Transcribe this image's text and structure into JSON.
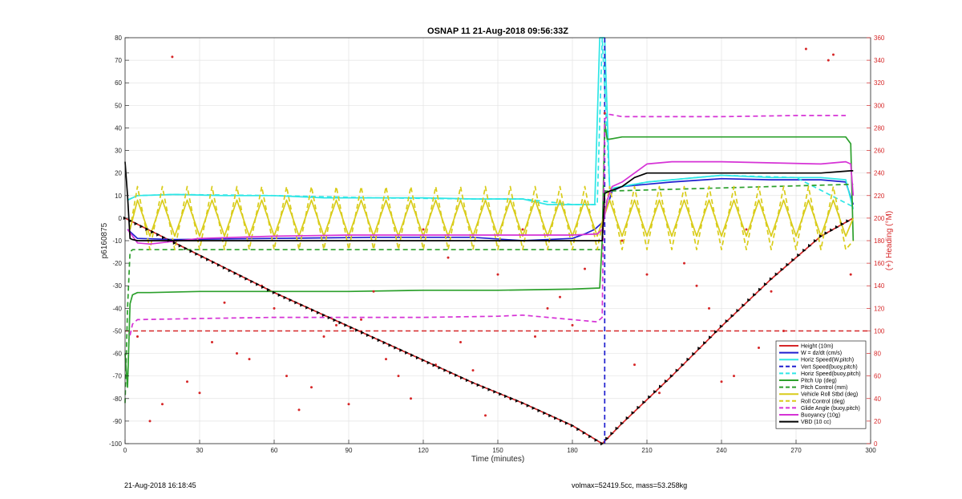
{
  "footer": {
    "timestamp": "21-Aug-2018 16:18:45",
    "mass_info": "volmax=52419.5cc, mass=53.258kg"
  },
  "chart_data": {
    "type": "line",
    "title": "OSNAP 11 21-Aug-2018 09:56:33Z",
    "xlabel": "Time (minutes)",
    "ylabel": "p6160875",
    "ylabel_right": "(+) Heading (°M)",
    "xlim": [
      0,
      300
    ],
    "ylim": [
      -100,
      80
    ],
    "ylim_right": [
      0,
      360
    ],
    "xticks": [
      0,
      30,
      60,
      90,
      120,
      150,
      180,
      210,
      240,
      270,
      300
    ],
    "yticks": [
      -100,
      -90,
      -80,
      -70,
      -60,
      -50,
      -40,
      -30,
      -20,
      -10,
      0,
      10,
      20,
      30,
      40,
      50,
      60,
      70,
      80
    ],
    "yticks_right": [
      0,
      20,
      40,
      60,
      80,
      100,
      120,
      140,
      160,
      180,
      200,
      220,
      240,
      260,
      280,
      300,
      320,
      340,
      360
    ],
    "grid": true,
    "legend_position": "bottom-right",
    "colors": {
      "red": "#d62728",
      "blue": "#1f1fcf",
      "cyan": "#2ee6e6",
      "green": "#2ca02c",
      "yellow": "#d9cc1a",
      "magenta": "#d633d6",
      "black": "#000000"
    },
    "series": [
      {
        "name": "Height (10m)",
        "color": "#d62728",
        "style": "solid",
        "x": [
          0,
          20,
          40,
          60,
          80,
          100,
          120,
          140,
          160,
          180,
          192,
          200,
          220,
          240,
          260,
          280,
          293
        ],
        "y": [
          0,
          -11,
          -22,
          -33,
          -43,
          -53,
          -63,
          -73,
          -82,
          -92,
          -100,
          -91,
          -70,
          -48,
          -27,
          -8,
          0
        ]
      },
      {
        "name": "W = dz/dt (cm/s)",
        "color": "#1f1fcf",
        "style": "solid",
        "x": [
          1,
          5,
          20,
          60,
          100,
          140,
          160,
          180,
          185,
          189,
          192,
          196,
          200,
          210,
          220,
          240,
          260,
          280,
          290,
          293
        ],
        "y": [
          -5,
          -9,
          -9.5,
          -9,
          -8.5,
          -8.5,
          -10,
          -9,
          -7,
          -5,
          -2,
          12,
          14,
          15,
          16,
          17.5,
          17,
          17,
          16,
          6
        ]
      },
      {
        "name": "Horiz Speed(W,pitch)",
        "color": "#2ee6e6",
        "style": "solid",
        "x": [
          1,
          5,
          20,
          40,
          60,
          80,
          100,
          120,
          140,
          160,
          170,
          180,
          189,
          191,
          192,
          193,
          195,
          200,
          210,
          220,
          240,
          260,
          280,
          290,
          293
        ],
        "y": [
          8,
          10,
          10.5,
          10,
          10,
          9,
          9,
          9,
          8.5,
          8.5,
          6,
          6,
          6,
          80,
          80,
          80,
          13,
          14,
          16,
          17,
          19,
          18,
          18,
          17,
          4
        ]
      },
      {
        "name": "Vert Speed(buoy,pitch)",
        "color": "#1f1fcf",
        "style": "dashed",
        "x": [
          193,
          193
        ],
        "y": [
          80,
          -100
        ]
      },
      {
        "name": "Horiz Speed(buoy,pitch)",
        "color": "#2ee6e6",
        "style": "dashed",
        "x": [
          1,
          5,
          20,
          60,
          100,
          140,
          160,
          180,
          190,
          192,
          195,
          210,
          240,
          270,
          293
        ],
        "y": [
          8,
          10,
          10.5,
          10,
          9,
          8.5,
          8.5,
          6,
          6,
          80,
          13,
          16,
          19,
          18,
          5
        ]
      },
      {
        "name": "Pitch Up (deg)",
        "color": "#2ca02c",
        "style": "solid",
        "x": [
          0,
          1,
          2,
          3,
          5,
          10,
          30,
          60,
          90,
          120,
          150,
          180,
          191,
          192,
          193,
          194,
          195,
          200,
          210,
          240,
          270,
          290,
          292,
          293
        ],
        "y": [
          -60,
          -75,
          -38,
          -34,
          -33,
          -33,
          -32.5,
          -32.5,
          -32.5,
          -32,
          -32,
          -31.5,
          -31,
          -10,
          42,
          35,
          35,
          36,
          36,
          36,
          36,
          36,
          33,
          -10
        ]
      },
      {
        "name": "Pitch Control (mm)",
        "color": "#2ca02c",
        "style": "dashed",
        "x": [
          0,
          1,
          2,
          3,
          192,
          193,
          194,
          293
        ],
        "y": [
          -82,
          -40,
          -15,
          -14,
          -14,
          12,
          12,
          15
        ]
      },
      {
        "name": "Vehicle Roll Stbd (deg)",
        "color": "#d9cc1a",
        "style": "solid",
        "x": [
          2,
          5,
          10,
          15,
          20,
          25,
          30,
          35,
          40,
          45,
          50,
          55,
          60,
          65,
          70,
          75,
          80,
          85,
          90,
          95,
          100,
          105,
          110,
          115,
          120,
          125,
          130,
          135,
          140,
          145,
          150,
          155,
          160,
          165,
          170,
          175,
          180,
          185,
          190,
          195,
          200,
          205,
          210,
          215,
          220,
          225,
          230,
          235,
          240,
          245,
          250,
          255,
          260,
          265,
          270,
          275,
          280,
          285,
          290,
          293
        ],
        "y": [
          -5,
          8,
          -8,
          8,
          -8,
          8,
          -8,
          8,
          -8,
          8,
          -8,
          8,
          -8,
          8,
          -8,
          8,
          -8,
          8,
          -8,
          8,
          -8,
          8,
          -8,
          8,
          -8,
          8,
          -8,
          8,
          -8,
          8,
          -8,
          8,
          -8,
          8,
          -8,
          8,
          -8,
          8,
          -8,
          8,
          -8,
          8,
          -8,
          8,
          -8,
          8,
          -8,
          8,
          -8,
          8,
          -8,
          8,
          -8,
          8,
          -8,
          8,
          -8,
          8,
          -8,
          0
        ]
      },
      {
        "name": "Roll Control (deg)",
        "color": "#d9cc1a",
        "style": "dashed",
        "x": [
          2,
          5,
          10,
          15,
          20,
          25,
          30,
          35,
          40,
          45,
          50,
          55,
          60,
          65,
          70,
          75,
          80,
          85,
          90,
          95,
          100,
          105,
          110,
          115,
          120,
          125,
          130,
          135,
          140,
          145,
          150,
          155,
          160,
          165,
          170,
          175,
          180,
          185,
          190,
          195,
          200,
          205,
          210,
          215,
          220,
          225,
          230,
          235,
          240,
          245,
          250,
          255,
          260,
          265,
          270,
          275,
          280,
          285,
          290,
          293
        ],
        "y": [
          -5,
          14,
          -14,
          14,
          -14,
          14,
          -14,
          14,
          -14,
          14,
          -14,
          14,
          -14,
          14,
          -14,
          14,
          -14,
          14,
          -14,
          14,
          -14,
          14,
          -14,
          14,
          -14,
          14,
          -14,
          14,
          -14,
          14,
          -14,
          14,
          -14,
          14,
          -14,
          14,
          -14,
          14,
          -14,
          14,
          -14,
          14,
          -14,
          14,
          -14,
          14,
          -14,
          14,
          -14,
          14,
          -14,
          14,
          -14,
          14,
          -14,
          14,
          -14,
          14,
          -14,
          -10
        ]
      },
      {
        "name": "Glide Angle (buoy,pitch)",
        "color": "#d633d6",
        "style": "dashed",
        "x": [
          2,
          3,
          5,
          30,
          60,
          90,
          120,
          150,
          160,
          180,
          190,
          192,
          193,
          195,
          200,
          210,
          240,
          270,
          290
        ],
        "y": [
          -52,
          -47,
          -45,
          -44.5,
          -44,
          -44,
          -44,
          -43.5,
          -43,
          -45,
          -46,
          -44,
          44,
          46,
          45,
          45,
          45,
          45.5,
          45.5
        ]
      },
      {
        "name": "Buoyancy (10g)",
        "color": "#d633d6",
        "style": "solid",
        "x": [
          1,
          5,
          10,
          30,
          60,
          90,
          120,
          150,
          180,
          190,
          192,
          194,
          196,
          200,
          210,
          220,
          240,
          260,
          280,
          290,
          292,
          293
        ],
        "y": [
          -5,
          -11,
          -11.5,
          -9,
          -8,
          -7.5,
          -7.5,
          -7.5,
          -7.5,
          -7,
          -5,
          8,
          14,
          16,
          24,
          25,
          25,
          24.5,
          24,
          25,
          24,
          10
        ]
      },
      {
        "name": "VBD (10 cc)",
        "color": "#000000",
        "style": "solid",
        "x": [
          0,
          1,
          2,
          3,
          5,
          30,
          60,
          90,
          120,
          150,
          180,
          192,
          193,
          195,
          200,
          205,
          210,
          220,
          240,
          260,
          280,
          292,
          293
        ],
        "y": [
          25,
          10,
          -9,
          -9.5,
          -10,
          -10,
          -10,
          -10,
          -10,
          -10,
          -10,
          -10,
          11,
          12,
          14,
          18,
          20,
          20,
          20,
          20,
          20,
          21,
          21
        ]
      },
      {
        "name": "Heading",
        "axis": "right",
        "color": "#d62728",
        "style": "points",
        "x": [
          19,
          283,
          285,
          274,
          193,
          120,
          150,
          160,
          40,
          60,
          80,
          100,
          130,
          170,
          200,
          230,
          250,
          5,
          25,
          45,
          65,
          85,
          105,
          135,
          155,
          175,
          205,
          225,
          245,
          265,
          10,
          30,
          50,
          70,
          90,
          110,
          140,
          165,
          185,
          215,
          235,
          255,
          275,
          288,
          15,
          35,
          55,
          75,
          95,
          115,
          125,
          145,
          180,
          210,
          240,
          260,
          280,
          292
        ],
        "y": [
          343,
          340,
          345,
          350,
          293,
          190,
          150,
          190,
          125,
          120,
          95,
          135,
          165,
          120,
          180,
          140,
          190,
          95,
          55,
          80,
          60,
          105,
          75,
          90,
          40,
          130,
          70,
          160,
          60,
          100,
          20,
          45,
          75,
          30,
          35,
          60,
          65,
          95,
          155,
          45,
          120,
          85,
          30,
          65,
          35,
          90,
          140,
          50,
          110,
          40,
          70,
          25,
          105,
          150,
          55,
          135,
          45,
          150
        ]
      }
    ],
    "reference_lines": [
      {
        "y": -50,
        "color": "#d62728",
        "style": "dashed"
      }
    ]
  }
}
